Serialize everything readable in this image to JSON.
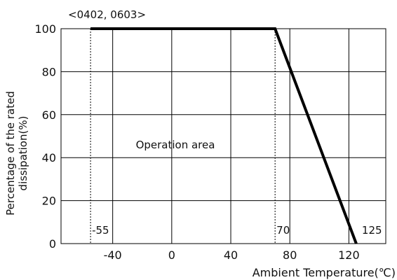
{
  "chart_data": {
    "type": "line",
    "title": "<0402, 0603>",
    "xlabel": "Ambient Temperature(℃)",
    "ylabel_line1": "Percentage of the rated",
    "ylabel_line2": "dissipation(%)",
    "annotation": "Operation area",
    "xlim": [
      -75,
      145
    ],
    "ylim": [
      0,
      100
    ],
    "x_ticks": [
      -40,
      0,
      40,
      80,
      120
    ],
    "x_tick_labels": [
      "-40",
      "0",
      "40",
      "80",
      "120"
    ],
    "y_ticks": [
      0,
      20,
      40,
      60,
      80,
      100
    ],
    "y_tick_labels": [
      "0",
      "20",
      "40",
      "60",
      "80",
      "100"
    ],
    "grid": true,
    "series": [
      {
        "x": [
          -55,
          70,
          125
        ],
        "y": [
          100,
          100,
          0
        ],
        "color": "#000000"
      }
    ],
    "reference_lines": [
      {
        "x": -55,
        "label": "-55"
      },
      {
        "x": 70,
        "label": "70"
      }
    ],
    "point_labels": [
      {
        "x": 125,
        "label": "125"
      }
    ]
  }
}
